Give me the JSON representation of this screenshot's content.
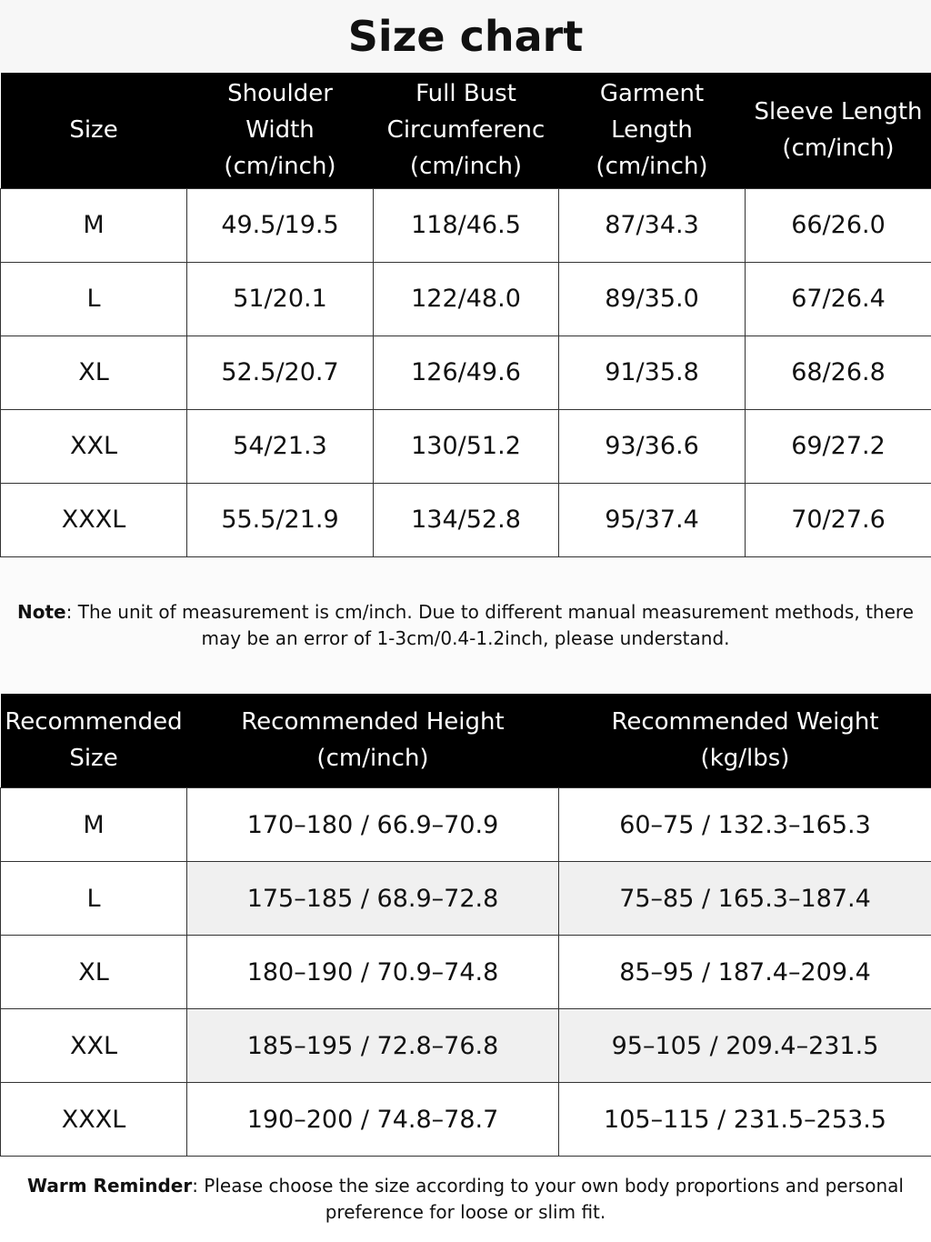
{
  "title": "Size chart",
  "table1": {
    "headers": [
      [
        "Size"
      ],
      [
        "Shoulder",
        "Width",
        "(cm/inch)"
      ],
      [
        "Full Bust",
        "Circumferenc",
        "(cm/inch)"
      ],
      [
        "Garment",
        "Length",
        "(cm/inch)"
      ],
      [
        "Sleeve Length",
        "(cm/inch)"
      ]
    ],
    "rows": [
      [
        "M",
        "49.5/19.5",
        "118/46.5",
        "87/34.3",
        "66/26.0"
      ],
      [
        "L",
        "51/20.1",
        "122/48.0",
        "89/35.0",
        "67/26.4"
      ],
      [
        "XL",
        "52.5/20.7",
        "126/49.6",
        "91/35.8",
        "68/26.8"
      ],
      [
        "XXL",
        "54/21.3",
        "130/51.2",
        "93/36.6",
        "69/27.2"
      ],
      [
        "XXXL",
        "55.5/21.9",
        "134/52.8",
        "95/37.4",
        "70/27.6"
      ]
    ]
  },
  "note": {
    "label": "Note",
    "text": ": The unit of measurement is cm/inch. Due to different manual measurement methods, there may be an error of 1-3cm/0.4-1.2inch, please understand."
  },
  "table2": {
    "headers": [
      [
        "Recommended",
        "Size"
      ],
      [
        "Recommended Height",
        "(cm/inch)"
      ],
      [
        "Recommended Weight",
        "(kg/lbs)"
      ]
    ],
    "rows": [
      [
        "M",
        "170–180 / 66.9–70.9",
        "60–75 / 132.3–165.3"
      ],
      [
        "L",
        "175–185 / 68.9–72.8",
        "75–85 / 165.3–187.4"
      ],
      [
        "XL",
        "180–190 / 70.9–74.8",
        "85–95 / 187.4–209.4"
      ],
      [
        "XXL",
        "185–195 / 72.8–76.8",
        "95–105 / 209.4–231.5"
      ],
      [
        "XXXL",
        "190–200 / 74.8–78.7",
        "105–115 / 231.5–253.5"
      ]
    ]
  },
  "reminder": {
    "label": "Warm Reminder",
    "text": ": Please choose the size according to your own body proportions and personal preference for loose or slim fit."
  }
}
